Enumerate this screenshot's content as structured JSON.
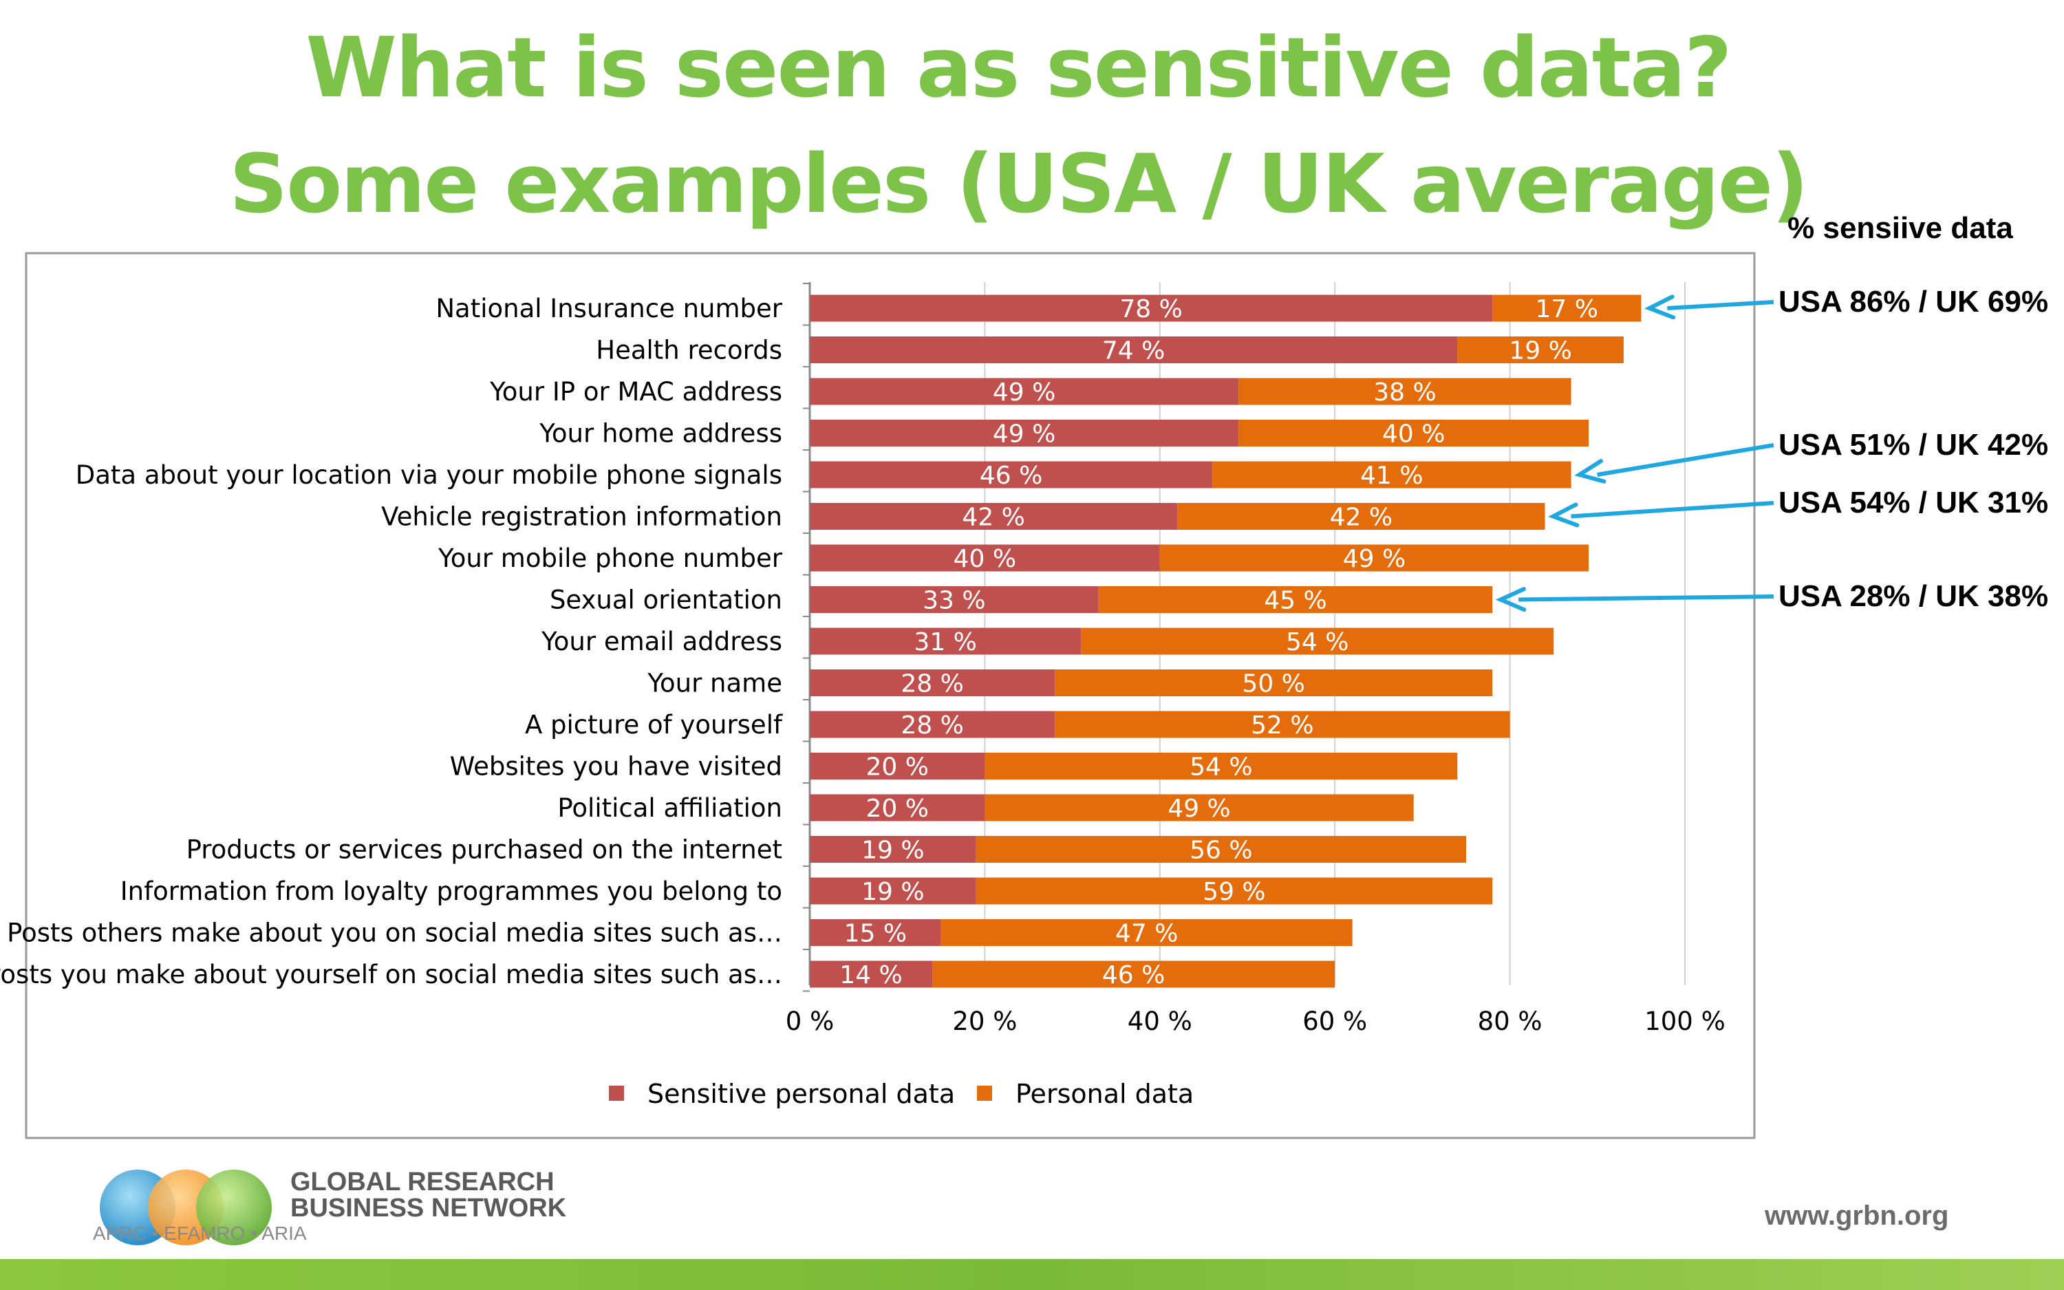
{
  "title": "What is seen as sensitive data?",
  "subtitle": "Some examples (USA / UK average)",
  "colors": {
    "title": "#7dc34a",
    "sensitive": "#c0504d",
    "personal": "#e46c0a",
    "arrow": "#1fa7e0"
  },
  "chart_data": {
    "type": "bar",
    "orientation": "horizontal",
    "stacked": true,
    "categories": [
      "National Insurance number",
      "Health records",
      "Your IP or MAC address",
      "Your home address",
      "Data about your location via your mobile phone signals",
      "Vehicle registration information",
      "Your mobile phone number",
      "Sexual orientation",
      "Your email address",
      "Your name",
      "A picture of yourself",
      "Websites you have visited",
      "Political affiliation",
      "Products or services purchased on the internet",
      "Information from loyalty programmes you belong to",
      "Posts others make about you on social media sites such as…",
      "Posts you make about yourself on social media sites such as…"
    ],
    "series": [
      {
        "name": "Sensitive personal data",
        "color": "#c0504d",
        "values": [
          78,
          74,
          49,
          49,
          46,
          42,
          40,
          33,
          31,
          28,
          28,
          20,
          20,
          19,
          19,
          15,
          14
        ],
        "labels": [
          "78 %",
          "74 %",
          "49 %",
          "49 %",
          "46 %",
          "42 %",
          "40 %",
          "33 %",
          "31 %",
          "28 %",
          "28 %",
          "20 %",
          "20 %",
          "19 %",
          "19 %",
          "15 %",
          "14 %"
        ]
      },
      {
        "name": "Personal data",
        "color": "#e46c0a",
        "values": [
          17,
          19,
          38,
          40,
          41,
          42,
          49,
          45,
          54,
          50,
          52,
          54,
          49,
          56,
          59,
          47,
          46
        ],
        "labels": [
          "17 %",
          "19 %",
          "38 %",
          "40 %",
          "41 %",
          "42 %",
          "49 %",
          "45 %",
          "54 %",
          "50 %",
          "52 %",
          "54 %",
          "49 %",
          "56 %",
          "59 %",
          "47 %",
          "46 %"
        ]
      }
    ],
    "xlim": [
      0,
      100
    ],
    "xticks": [
      0,
      20,
      40,
      60,
      80,
      100
    ],
    "xtick_labels": [
      "0 %",
      "20 %",
      "40 %",
      "60 %",
      "80 %",
      "100 %"
    ],
    "grid": "vertical",
    "legend": "bottom"
  },
  "annotations": {
    "header": "% sensiive data",
    "items": [
      {
        "category_index": 0,
        "text": "USA 86% / UK 69%"
      },
      {
        "category_index": 4,
        "text": "USA 51% / UK 42%"
      },
      {
        "category_index": 5,
        "text": "USA 54% / UK 31%"
      },
      {
        "category_index": 7,
        "text": "USA 28% / UK 38%"
      }
    ]
  },
  "footer": {
    "logo_line1": "GLOBAL RESEARCH",
    "logo_line2": "BUSINESS NETWORK",
    "logo_line3": "APRC • EFAMRO • ARIA",
    "website": "www.grbn.org"
  }
}
